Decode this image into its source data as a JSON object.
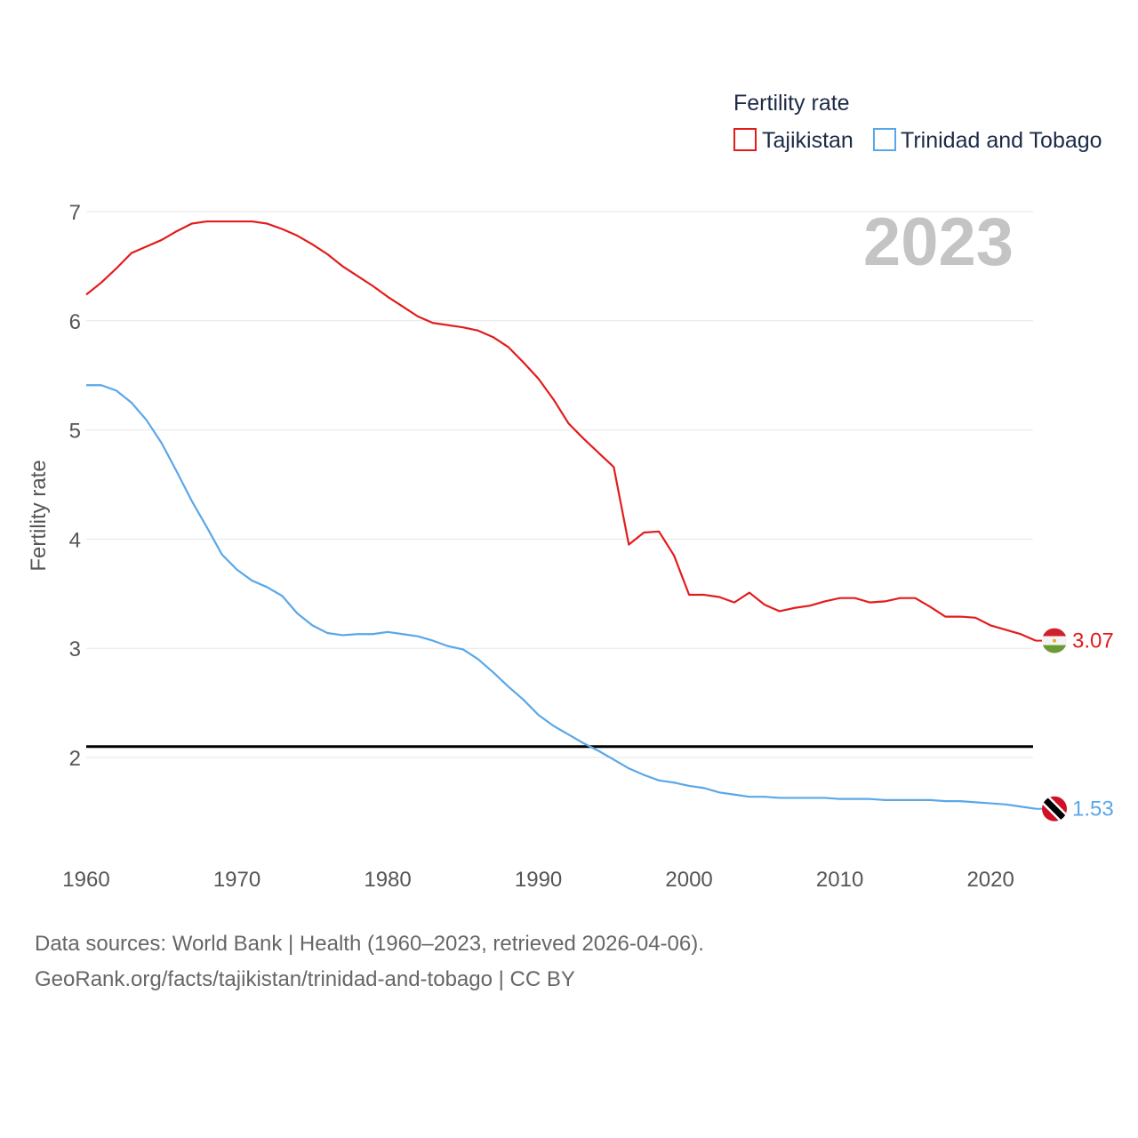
{
  "chart_data": {
    "type": "line",
    "legend_title": "Fertility rate",
    "ylabel": "Fertility rate",
    "xlabel": "",
    "highlight_year": "2023",
    "xlim": [
      1960,
      2023
    ],
    "ylim": [
      1.2,
      7.2
    ],
    "x_ticks": [
      1960,
      1970,
      1980,
      1990,
      2000,
      2010,
      2020
    ],
    "y_ticks": [
      2,
      3,
      4,
      5,
      6,
      7
    ],
    "reference_line": 2.1,
    "legend_position": "top-right",
    "grid": true,
    "x": [
      1960,
      1961,
      1962,
      1963,
      1964,
      1965,
      1966,
      1967,
      1968,
      1969,
      1970,
      1971,
      1972,
      1973,
      1974,
      1975,
      1976,
      1977,
      1978,
      1979,
      1980,
      1981,
      1982,
      1983,
      1984,
      1985,
      1986,
      1987,
      1988,
      1989,
      1990,
      1991,
      1992,
      1993,
      1994,
      1995,
      1996,
      1997,
      1998,
      1999,
      2000,
      2001,
      2002,
      2003,
      2004,
      2005,
      2006,
      2007,
      2008,
      2009,
      2010,
      2011,
      2012,
      2013,
      2014,
      2015,
      2016,
      2017,
      2018,
      2019,
      2020,
      2021,
      2022,
      2023
    ],
    "series": [
      {
        "name": "Tajikistan",
        "color": "#e31b1b",
        "end_label": "3.07",
        "flag": "tajikistan-flag",
        "values": [
          6.24,
          6.35,
          6.48,
          6.62,
          6.68,
          6.74,
          6.82,
          6.89,
          6.91,
          6.91,
          6.91,
          6.91,
          6.89,
          6.84,
          6.78,
          6.7,
          6.61,
          6.5,
          6.41,
          6.32,
          6.22,
          6.13,
          6.04,
          5.98,
          5.96,
          5.94,
          5.91,
          5.85,
          5.76,
          5.62,
          5.47,
          5.28,
          5.06,
          4.92,
          4.79,
          4.66,
          3.95,
          4.06,
          4.07,
          3.85,
          3.49,
          3.49,
          3.47,
          3.42,
          3.51,
          3.4,
          3.34,
          3.37,
          3.39,
          3.43,
          3.46,
          3.46,
          3.42,
          3.43,
          3.46,
          3.46,
          3.38,
          3.29,
          3.29,
          3.28,
          3.21,
          3.17,
          3.13,
          3.07
        ]
      },
      {
        "name": "Trinidad and Tobago",
        "color": "#5aa7e8",
        "end_label": "1.53",
        "flag": "trinidad-and-tobago-flag",
        "values": [
          5.41,
          5.41,
          5.36,
          5.25,
          5.09,
          4.88,
          4.62,
          4.35,
          4.11,
          3.86,
          3.72,
          3.62,
          3.56,
          3.48,
          3.32,
          3.21,
          3.14,
          3.12,
          3.13,
          3.13,
          3.15,
          3.13,
          3.11,
          3.07,
          3.02,
          2.99,
          2.9,
          2.78,
          2.65,
          2.53,
          2.39,
          2.29,
          2.21,
          2.13,
          2.06,
          1.98,
          1.9,
          1.84,
          1.79,
          1.77,
          1.74,
          1.72,
          1.68,
          1.66,
          1.64,
          1.64,
          1.63,
          1.63,
          1.63,
          1.63,
          1.62,
          1.62,
          1.62,
          1.61,
          1.61,
          1.61,
          1.61,
          1.6,
          1.6,
          1.59,
          1.58,
          1.57,
          1.55,
          1.53
        ]
      }
    ]
  },
  "footer": {
    "line1": "Data sources: World Bank | Health (1960–2023, retrieved 2026-04-06).",
    "line2": "GeoRank.org/facts/tajikistan/trinidad-and-tobago | CC BY"
  }
}
